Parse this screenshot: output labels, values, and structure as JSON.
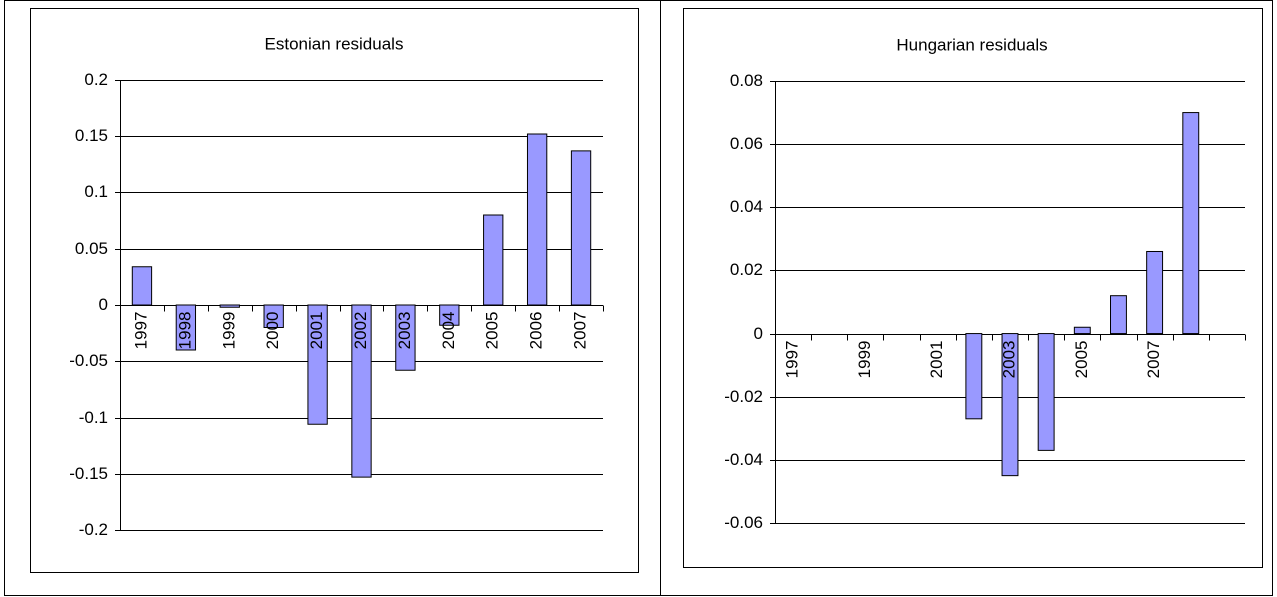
{
  "chart_data": [
    {
      "type": "bar",
      "title": "Estonian residuals",
      "categories": [
        "1997",
        "1998",
        "1999",
        "2000",
        "2001",
        "2002",
        "2003",
        "2004",
        "2005",
        "2006",
        "2007"
      ],
      "values": [
        0.034,
        -0.04,
        -0.002,
        -0.02,
        -0.106,
        -0.153,
        -0.058,
        -0.018,
        0.08,
        0.152,
        0.137
      ],
      "color": "#9999ff",
      "ylim": [
        -0.2,
        0.2
      ],
      "yticks": [
        -0.2,
        -0.15,
        -0.1,
        -0.05,
        0,
        0.05,
        0.1,
        0.15,
        0.2
      ],
      "grid": true
    },
    {
      "type": "bar",
      "title": "Hungarian residuals",
      "categories": [
        "1997",
        null,
        "1999",
        null,
        "2001",
        null,
        "2003",
        null,
        "2005",
        null,
        "2007",
        null,
        null
      ],
      "values": [
        null,
        null,
        null,
        null,
        null,
        -0.027,
        -0.045,
        -0.037,
        0.002,
        0.012,
        0.026,
        0.07,
        null
      ],
      "color": "#9999ff",
      "ylim": [
        -0.06,
        0.08
      ],
      "yticks": [
        -0.06,
        -0.04,
        -0.02,
        0,
        0.02,
        0.04,
        0.06,
        0.08
      ],
      "grid": true
    }
  ]
}
